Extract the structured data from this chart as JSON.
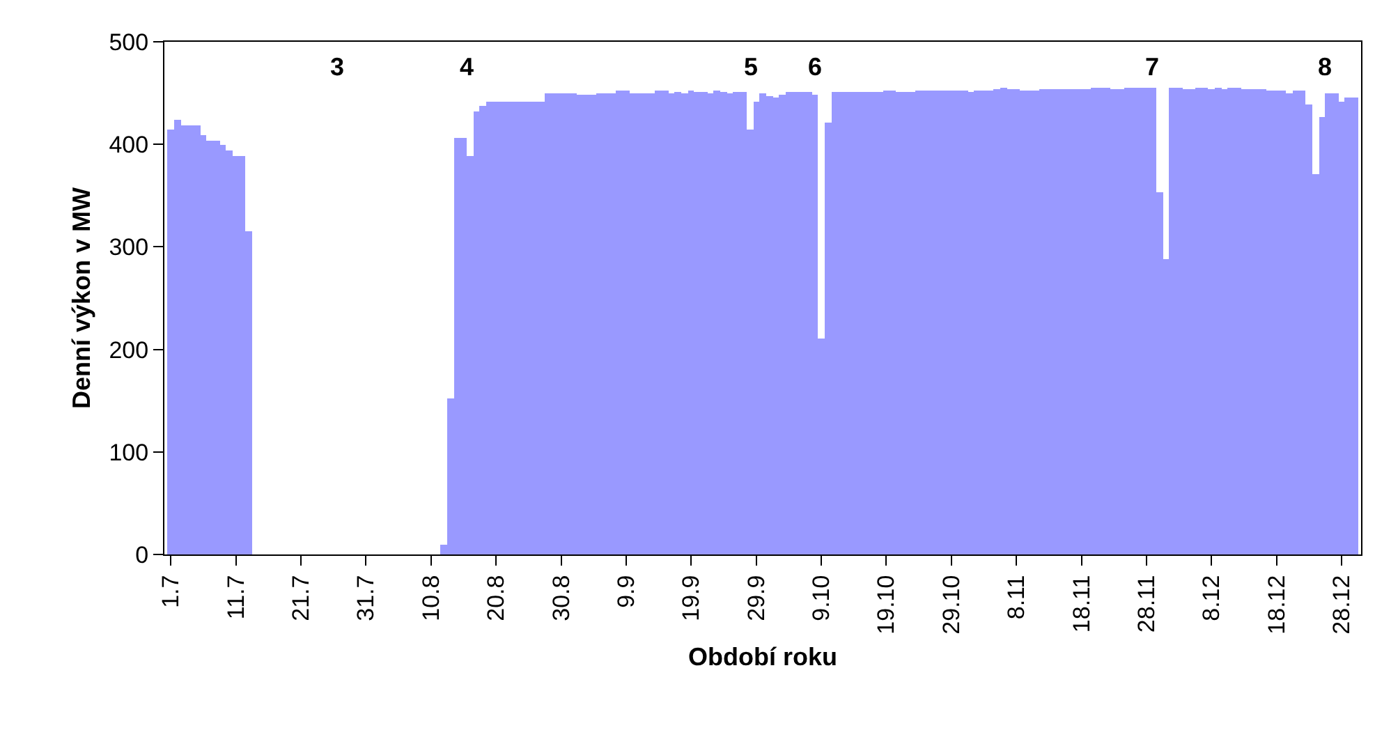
{
  "chart_data": {
    "type": "bar",
    "xlabel": "Období roku",
    "ylabel": "Denní výkon v MW",
    "x": [
      "--07-01",
      "--07-02",
      "--07-03",
      "--07-04",
      "--07-05",
      "--07-06",
      "--07-07",
      "--07-08",
      "--07-09",
      "--07-10",
      "--07-11",
      "--07-12",
      "--07-13",
      "--07-14",
      "--07-15",
      "--07-16",
      "--07-17",
      "--07-18",
      "--07-19",
      "--07-20",
      "--07-21",
      "--07-22",
      "--07-23",
      "--07-24",
      "--07-25",
      "--07-26",
      "--07-27",
      "--07-28",
      "--07-29",
      "--07-30",
      "--07-31",
      "--08-01",
      "--08-02",
      "--08-03",
      "--08-04",
      "--08-05",
      "--08-06",
      "--08-07",
      "--08-08",
      "--08-09",
      "--08-10",
      "--08-11",
      "--08-12",
      "--08-13",
      "--08-14",
      "--08-15",
      "--08-16",
      "--08-17",
      "--08-18",
      "--08-19",
      "--08-20",
      "--08-21",
      "--08-22",
      "--08-23",
      "--08-24",
      "--08-25",
      "--08-26",
      "--08-27",
      "--08-28",
      "--08-29",
      "--08-30",
      "--08-31",
      "--09-01",
      "--09-02",
      "--09-03",
      "--09-04",
      "--09-05",
      "--09-06",
      "--09-07",
      "--09-08",
      "--09-09",
      "--09-10",
      "--09-11",
      "--09-12",
      "--09-13",
      "--09-14",
      "--09-15",
      "--09-16",
      "--09-17",
      "--09-18",
      "--09-19",
      "--09-20",
      "--09-21",
      "--09-22",
      "--09-23",
      "--09-24",
      "--09-25",
      "--09-26",
      "--09-27",
      "--09-28",
      "--09-29",
      "--09-30",
      "--10-01",
      "--10-02",
      "--10-03",
      "--10-04",
      "--10-05",
      "--10-06",
      "--10-07",
      "--10-08",
      "--10-09",
      "--10-10",
      "--10-11",
      "--10-12",
      "--10-13",
      "--10-14",
      "--10-15",
      "--10-16",
      "--10-17",
      "--10-18",
      "--10-19",
      "--10-20",
      "--10-21",
      "--10-22",
      "--10-23",
      "--10-24",
      "--10-25",
      "--10-26",
      "--10-27",
      "--10-28",
      "--10-29",
      "--10-30",
      "--10-31",
      "--11-01",
      "--11-02",
      "--11-03",
      "--11-04",
      "--11-05",
      "--11-06",
      "--11-07",
      "--11-08",
      "--11-09",
      "--11-10",
      "--11-11",
      "--11-12",
      "--11-13",
      "--11-14",
      "--11-15",
      "--11-16",
      "--11-17",
      "--11-18",
      "--11-19",
      "--11-20",
      "--11-21",
      "--11-22",
      "--11-23",
      "--11-24",
      "--11-25",
      "--11-26",
      "--11-27",
      "--11-28",
      "--11-29",
      "--11-30",
      "--12-01",
      "--12-02",
      "--12-03",
      "--12-04",
      "--12-05",
      "--12-06",
      "--12-07",
      "--12-08",
      "--12-09",
      "--12-10",
      "--12-11",
      "--12-12",
      "--12-13",
      "--12-14",
      "--12-15",
      "--12-16",
      "--12-17",
      "--12-18",
      "--12-19",
      "--12-20",
      "--12-21",
      "--12-22",
      "--12-23",
      "--12-24",
      "--12-25",
      "--12-26",
      "--12-27",
      "--12-28",
      "--12-29",
      "--12-30"
    ],
    "values": [
      414,
      424,
      418,
      418,
      418,
      409,
      403,
      403,
      400,
      394,
      389,
      389,
      315,
      0,
      0,
      0,
      0,
      0,
      0,
      0,
      0,
      0,
      0,
      0,
      0,
      0,
      0,
      0,
      0,
      0,
      0,
      0,
      0,
      0,
      0,
      0,
      0,
      0,
      0,
      0,
      0,
      0,
      9,
      152,
      406,
      406,
      389,
      432,
      438,
      441,
      441,
      441,
      441,
      441,
      441,
      441,
      441,
      441,
      450,
      450,
      450,
      450,
      450,
      448,
      448,
      448,
      450,
      450,
      450,
      452,
      452,
      450,
      450,
      450,
      450,
      452,
      452,
      450,
      451,
      450,
      452,
      451,
      451,
      450,
      452,
      451,
      450,
      451,
      451,
      415,
      441,
      450,
      447,
      446,
      448,
      451,
      451,
      451,
      451,
      448,
      211,
      421,
      451,
      451,
      451,
      451,
      451,
      451,
      451,
      451,
      452,
      452,
      451,
      451,
      451,
      452,
      453,
      453,
      453,
      453,
      453,
      452,
      452,
      451,
      452,
      453,
      453,
      454,
      455,
      454,
      454,
      453,
      453,
      453,
      454,
      454,
      454,
      454,
      454,
      454,
      454,
      454,
      455,
      455,
      455,
      454,
      454,
      455,
      455,
      455,
      455,
      455,
      353,
      288,
      455,
      455,
      454,
      454,
      455,
      455,
      454,
      455,
      454,
      455,
      455,
      454,
      454,
      454,
      454,
      453,
      453,
      453,
      450,
      453,
      453,
      439,
      371,
      427,
      450,
      450,
      441,
      445,
      445
    ],
    "color": "#9999ff",
    "xticks": [
      {
        "value": "--07-01",
        "label": "1.7"
      },
      {
        "value": "--07-11",
        "label": "11.7"
      },
      {
        "value": "--07-21",
        "label": "21.7"
      },
      {
        "value": "--07-31",
        "label": "31.7"
      },
      {
        "value": "--08-10",
        "label": "10.8"
      },
      {
        "value": "--08-20",
        "label": "20.8"
      },
      {
        "value": "--08-30",
        "label": "30.8"
      },
      {
        "value": "--09-09",
        "label": "9.9"
      },
      {
        "value": "--09-19",
        "label": "19.9"
      },
      {
        "value": "--09-29",
        "label": "29.9"
      },
      {
        "value": "--10-09",
        "label": "9.10"
      },
      {
        "value": "--10-19",
        "label": "19.10"
      },
      {
        "value": "--10-29",
        "label": "29.10"
      },
      {
        "value": "--11-08",
        "label": "8.11"
      },
      {
        "value": "--11-18",
        "label": "18.11"
      },
      {
        "value": "--11-28",
        "label": "28.11"
      },
      {
        "value": "--12-08",
        "label": "8.12"
      },
      {
        "value": "--12-18",
        "label": "18.12"
      },
      {
        "value": "--12-28",
        "label": "28.12"
      }
    ],
    "xlim": [
      "--06-30",
      "--12-31"
    ],
    "ylim": [
      0,
      500
    ],
    "yticks": [
      0,
      100,
      200,
      300,
      400,
      500
    ],
    "annotations": [
      "3",
      "4",
      "5",
      "6",
      "7",
      "8"
    ]
  }
}
